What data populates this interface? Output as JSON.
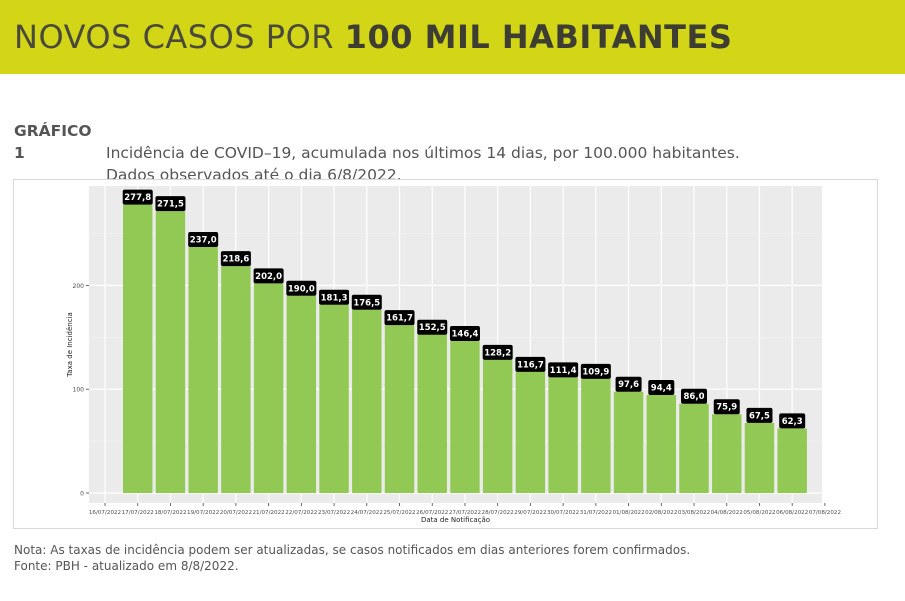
{
  "banner": {
    "title_regular": "NOVOS CASOS POR",
    "title_bold": "100 MIL HABITANTES"
  },
  "caption": {
    "label": "GRÁFICO 1",
    "line1": "Incidência de COVID–19, acumulada nos últimos 14 dias, por 100.000 habitantes.",
    "line2": "Dados observados até o dia 6/8/2022."
  },
  "notes": {
    "line1": "Nota: As taxas de incidência podem ser atualizadas, se casos notificados em dias anteriores forem confirmados.",
    "line2": "Fonte: PBH - atualizado em 8/8/2022."
  },
  "colors": {
    "banner": "#d3d617",
    "bar": "#92c954",
    "panel": "#ebebeb",
    "label_bg": "#000000"
  },
  "chart_data": {
    "type": "bar",
    "title": "",
    "xlabel": "Data de Notificação",
    "ylabel": "Taxa de Incidência",
    "ylim": [
      0,
      300
    ],
    "yticks": [
      0,
      100,
      200
    ],
    "x_tick_labels": [
      "16/07/2022",
      "17/07/2022",
      "18/07/2022",
      "19/07/2022",
      "20/07/2022",
      "21/07/2022",
      "22/07/2022",
      "23/07/2022",
      "24/07/2022",
      "25/07/2022",
      "26/07/2022",
      "27/07/2022",
      "28/07/2022",
      "29/07/2022",
      "30/07/2022",
      "31/07/2022",
      "01/08/2022",
      "02/08/2022",
      "03/08/2022",
      "04/08/2022",
      "05/08/2022",
      "06/08/2022",
      "07/08/2022"
    ],
    "categories": [
      "17/07/2022",
      "18/07/2022",
      "19/07/2022",
      "20/07/2022",
      "21/07/2022",
      "22/07/2022",
      "23/07/2022",
      "24/07/2022",
      "25/07/2022",
      "26/07/2022",
      "27/07/2022",
      "28/07/2022",
      "29/07/2022",
      "30/07/2022",
      "31/07/2022",
      "01/08/2022",
      "02/08/2022",
      "03/08/2022",
      "04/08/2022",
      "05/08/2022",
      "06/08/2022"
    ],
    "values": [
      277.8,
      271.5,
      237.0,
      218.6,
      202.0,
      190.0,
      181.3,
      176.5,
      161.7,
      152.5,
      146.4,
      128.2,
      116.7,
      111.4,
      109.9,
      97.6,
      94.4,
      86.0,
      75.9,
      67.5,
      62.3
    ],
    "data_labels": [
      "277,8",
      "271,5",
      "237,0",
      "218,6",
      "202,0",
      "190,0",
      "181,3",
      "176,5",
      "161,7",
      "152,5",
      "146,4",
      "128,2",
      "116,7",
      "111,4",
      "109,9",
      "97,6",
      "94,4",
      "86,0",
      "75,9",
      "67,5",
      "62,3"
    ],
    "grid": true
  }
}
